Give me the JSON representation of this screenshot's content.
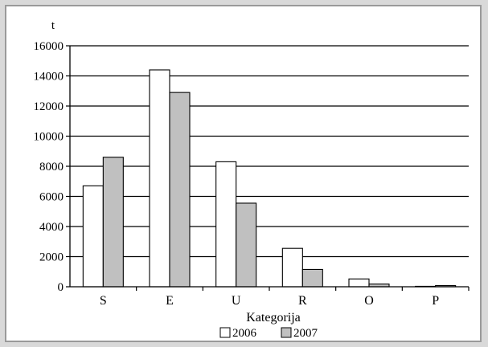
{
  "chart_data": {
    "type": "bar",
    "unit_label": "t",
    "xlabel": "Kategorija",
    "categories": [
      "S",
      "E",
      "U",
      "R",
      "O",
      "P"
    ],
    "series": [
      {
        "name": "2006",
        "values": [
          6700,
          14400,
          8300,
          2550,
          520,
          30
        ],
        "color": "#ffffff"
      },
      {
        "name": "2007",
        "values": [
          8600,
          12900,
          5550,
          1150,
          180,
          80
        ],
        "color": "#c0c0c0"
      }
    ],
    "ylim": [
      0,
      16000
    ],
    "yticks": [
      "0",
      "2000",
      "4000",
      "6000",
      "8000",
      "10000",
      "12000",
      "14000",
      "16000"
    ],
    "grid": true,
    "legend_position": "bottom"
  }
}
